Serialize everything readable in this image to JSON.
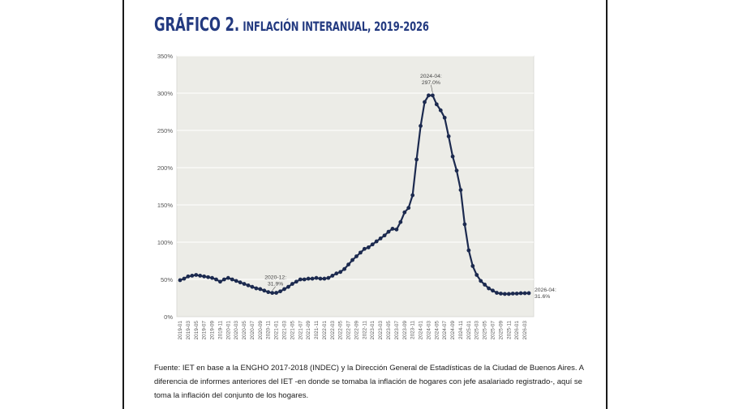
{
  "heading": {
    "main": "GRÁFICO 2.",
    "sub": "INFLACIÓN INTERANUAL, 2019-2026"
  },
  "source_note": "Fuente: IET en base a la ENGHO 2017-2018 (INDEC) y la Dirección General de Estadísticas de la Ciudad de Buenos Aires. A diferencia de informes anteriores del IET -en donde se tomaba la inflación de hogares con jefe asalariado registrado-, aquí se toma la inflación del conjunto de los hogares.",
  "colors": {
    "heading": "#233a80",
    "line": "#1c2a4f",
    "plot_bg": "#ecece7",
    "grid": "#ffffff"
  },
  "chart_data": {
    "type": "line",
    "title": "INFLACIÓN INTERANUAL, 2019-2026",
    "xlabel": "",
    "ylabel": "",
    "ylim": [
      0,
      350
    ],
    "yticks": [
      0,
      50,
      100,
      150,
      200,
      250,
      300,
      350
    ],
    "ytick_labels": [
      "0%",
      "50%",
      "100%",
      "150%",
      "200%",
      "250%",
      "300%",
      "350%"
    ],
    "xtick_labels": [
      "2019-01",
      "2019-03",
      "2019-05",
      "2019-07",
      "2019-09",
      "2019-11",
      "2020-01",
      "2020-03",
      "2020-05",
      "2020-07",
      "2020-09",
      "2020-11",
      "2021-01",
      "2021-03",
      "2021-05",
      "2021-07",
      "2021-09",
      "2021-11",
      "2022-01",
      "2022-03",
      "2022-05",
      "2022-07",
      "2022-09",
      "2022-11",
      "2023-01",
      "2023-03",
      "2023-05",
      "2023-07",
      "2023-09",
      "2023-11",
      "2024-01",
      "2024-03",
      "2024-05",
      "2024-07",
      "2024-09",
      "2024-11",
      "2025-01",
      "2025-03",
      "2025-05",
      "2025-07",
      "2025-09",
      "2025-11",
      "2026-01",
      "2026-03"
    ],
    "grid": true,
    "legend": "none",
    "series": [
      {
        "x": [
          "2019-01",
          "2019-02",
          "2019-03",
          "2019-04",
          "2019-05",
          "2019-06",
          "2019-07",
          "2019-08",
          "2019-09",
          "2019-10",
          "2019-11",
          "2019-12",
          "2020-01",
          "2020-02",
          "2020-03",
          "2020-04",
          "2020-05",
          "2020-06",
          "2020-07",
          "2020-08",
          "2020-09",
          "2020-10",
          "2020-11",
          "2020-12",
          "2021-01",
          "2021-02",
          "2021-03",
          "2021-04",
          "2021-05",
          "2021-06",
          "2021-07",
          "2021-08",
          "2021-09",
          "2021-10",
          "2021-11",
          "2021-12",
          "2022-01",
          "2022-02",
          "2022-03",
          "2022-04",
          "2022-05",
          "2022-06",
          "2022-07",
          "2022-08",
          "2022-09",
          "2022-10",
          "2022-11",
          "2022-12",
          "2023-01",
          "2023-02",
          "2023-03",
          "2023-04",
          "2023-05",
          "2023-06",
          "2023-07",
          "2023-08",
          "2023-09",
          "2023-10",
          "2023-11",
          "2023-12",
          "2024-01",
          "2024-02",
          "2024-03",
          "2024-04",
          "2024-05",
          "2024-06",
          "2024-07",
          "2024-08",
          "2024-09",
          "2024-10",
          "2024-11",
          "2024-12",
          "2025-01",
          "2025-02",
          "2025-03",
          "2025-04",
          "2025-05",
          "2025-06",
          "2025-07",
          "2025-08",
          "2025-09",
          "2025-10",
          "2025-11",
          "2025-12",
          "2026-01",
          "2026-02",
          "2026-03",
          "2026-04"
        ],
        "values": [
          49,
          51,
          54,
          55,
          56,
          55,
          54,
          53,
          52,
          50,
          47,
          50,
          52,
          50,
          48,
          46,
          44,
          42,
          40,
          38,
          37,
          35,
          33,
          31.9,
          32,
          34,
          37,
          40,
          44,
          47,
          50,
          50,
          51,
          51,
          52,
          51,
          51,
          52,
          55,
          58,
          60,
          64,
          70,
          76,
          81,
          86,
          91,
          93,
          97,
          101,
          105,
          109,
          114,
          118,
          117,
          127,
          140,
          146,
          163,
          211,
          256,
          288,
          297,
          297,
          285,
          277,
          267,
          242,
          215,
          196,
          170,
          124,
          89,
          68,
          56,
          48,
          43,
          38,
          35,
          32,
          31,
          30.5,
          30.5,
          31,
          31,
          31.5,
          31.5,
          31.6
        ]
      }
    ],
    "annotations": [
      {
        "x": "2020-12",
        "label": "2020-12:",
        "value_label": "31.9%"
      },
      {
        "x": "2024-04",
        "label": "2024-04:",
        "value_label": "297.0%"
      },
      {
        "x": "2026-04",
        "label": "2026-04:",
        "value_label": "31.6%"
      }
    ]
  }
}
